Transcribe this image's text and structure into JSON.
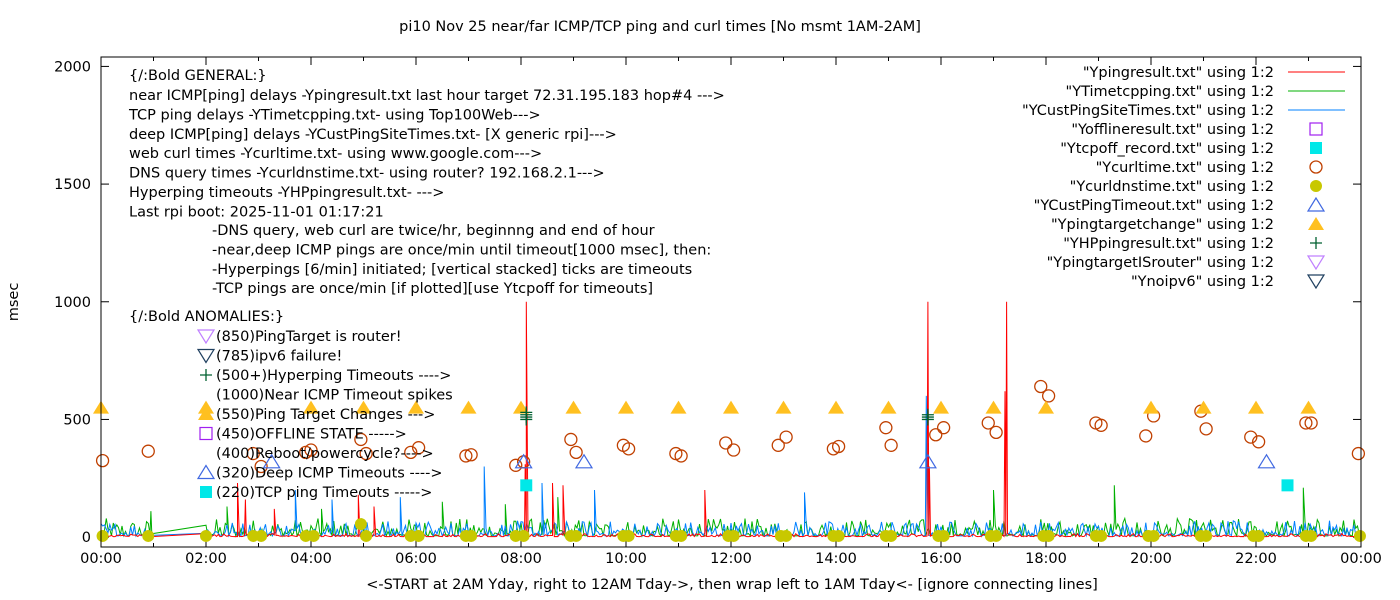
{
  "chart_data": {
    "type": "line",
    "title": "pi10 Nov 25  near/far ICMP/TCP ping and curl times [No msmt 1AM-2AM]",
    "xlabel": "<-START at 2AM Yday, right to 12AM Tday->, then wrap left to 1AM Tday<- [ignore connecting lines]",
    "ylabel": "msec",
    "xlim": [
      0,
      24
    ],
    "ylim": [
      0,
      2000
    ],
    "x_tick_labels": [
      "00:00",
      "02:00",
      "04:00",
      "06:00",
      "08:00",
      "10:00",
      "12:00",
      "14:00",
      "16:00",
      "18:00",
      "20:00",
      "22:00",
      "00:00"
    ],
    "y_ticks": [
      0,
      500,
      1000,
      1500,
      2000
    ],
    "legend_position": "top-right",
    "legend": [
      {
        "label": "\"Ypingresult.txt\" using 1:2",
        "style": "line",
        "color": "#ff0000"
      },
      {
        "label": "\"YTimetcpping.txt\" using 1:2",
        "style": "line",
        "color": "#00b000"
      },
      {
        "label": "\"YCustPingSiteTimes.txt\" using 1:2",
        "style": "line",
        "color": "#0080ff"
      },
      {
        "label": "\"Yofflineresult.txt\" using 1:2",
        "style": "open-square",
        "color": "#a020f0"
      },
      {
        "label": "\"Ytcpoff_record.txt\" using 1:2",
        "style": "filled-square",
        "color": "#00e8e8"
      },
      {
        "label": "\"Ycurltime.txt\" using 1:2",
        "style": "open-circle",
        "color": "#c04000"
      },
      {
        "label": "\"Ycurldnstime.txt\" using 1:2",
        "style": "filled-circle",
        "color": "#c8c800"
      },
      {
        "label": "\"YCustPingTimeout.txt\" using 1:2",
        "style": "open-triangle",
        "color": "#4169e1"
      },
      {
        "label": "\"Ypingtargetchange\" using 1:2",
        "style": "filled-triangle",
        "color": "#ffc020"
      },
      {
        "label": "\"YHPpingresult.txt\" using 1:2",
        "style": "plus",
        "color": "#006030"
      },
      {
        "label": "\"YpingtargetISrouter\" using 1:2",
        "style": "open-down-triangle",
        "color": "#c080ff"
      },
      {
        "label": "\"Ynoipv6\" using 1:2",
        "style": "open-down-triangle",
        "color": "#204060"
      }
    ],
    "series": {
      "ping_near": {
        "baseline_range": [
          2,
          15
        ],
        "spikes": [
          [
            2.6,
            230
          ],
          [
            2.75,
            160
          ],
          [
            3.3,
            120
          ],
          [
            4.9,
            180
          ],
          [
            5.2,
            130
          ],
          [
            8.1,
            1000
          ],
          [
            8.08,
            310
          ],
          [
            8.6,
            230
          ],
          [
            8.8,
            220
          ],
          [
            11.5,
            80
          ],
          [
            11.5,
            200
          ],
          [
            15.75,
            1000
          ],
          [
            15.78,
            300
          ],
          [
            17.25,
            1000
          ],
          [
            17.22,
            620
          ]
        ]
      },
      "tcp_ping": {
        "baseline_range": [
          5,
          80
        ],
        "spikes": [
          [
            0.95,
            110
          ],
          [
            2.4,
            130
          ],
          [
            4.2,
            120
          ],
          [
            6.5,
            150
          ],
          [
            7.7,
            140
          ],
          [
            8.7,
            170
          ],
          [
            13.4,
            60
          ],
          [
            17.0,
            200
          ],
          [
            19.3,
            220
          ],
          [
            22.9,
            210
          ]
        ]
      },
      "deep_ping": {
        "baseline_range": [
          5,
          70
        ],
        "spikes": [
          [
            3.7,
            200
          ],
          [
            4.4,
            160
          ],
          [
            5.7,
            170
          ],
          [
            7.3,
            300
          ],
          [
            8.4,
            230
          ],
          [
            9.4,
            200
          ],
          [
            13.4,
            190
          ],
          [
            15.72,
            600
          ],
          [
            15.76,
            400
          ]
        ]
      },
      "curl_times": [
        [
          0.03,
          325
        ],
        [
          0.9,
          365
        ],
        [
          2.9,
          355
        ],
        [
          3.05,
          300
        ],
        [
          3.9,
          360
        ],
        [
          4.0,
          370
        ],
        [
          4.95,
          415
        ],
        [
          5.05,
          355
        ],
        [
          5.9,
          360
        ],
        [
          6.05,
          380
        ],
        [
          6.95,
          345
        ],
        [
          7.05,
          350
        ],
        [
          7.9,
          305
        ],
        [
          8.05,
          320
        ],
        [
          8.95,
          415
        ],
        [
          9.05,
          360
        ],
        [
          9.95,
          390
        ],
        [
          10.05,
          375
        ],
        [
          10.95,
          355
        ],
        [
          11.05,
          345
        ],
        [
          11.9,
          400
        ],
        [
          12.05,
          370
        ],
        [
          12.9,
          390
        ],
        [
          13.05,
          425
        ],
        [
          13.95,
          375
        ],
        [
          14.05,
          385
        ],
        [
          14.95,
          465
        ],
        [
          15.05,
          390
        ],
        [
          15.9,
          435
        ],
        [
          16.05,
          465
        ],
        [
          16.9,
          485
        ],
        [
          17.05,
          445
        ],
        [
          17.9,
          640
        ],
        [
          18.05,
          600
        ],
        [
          18.95,
          485
        ],
        [
          19.05,
          475
        ],
        [
          19.9,
          430
        ],
        [
          20.05,
          515
        ],
        [
          20.95,
          535
        ],
        [
          21.05,
          460
        ],
        [
          21.9,
          425
        ],
        [
          22.05,
          405
        ],
        [
          22.95,
          485
        ],
        [
          23.05,
          485
        ],
        [
          23.95,
          355
        ]
      ],
      "dns_times": [
        [
          0.03,
          5
        ],
        [
          0.9,
          5
        ],
        [
          2.0,
          5
        ],
        [
          2.9,
          5
        ],
        [
          3.05,
          5
        ],
        [
          3.9,
          5
        ],
        [
          4.05,
          5
        ],
        [
          4.95,
          55
        ],
        [
          5.05,
          5
        ],
        [
          5.9,
          5
        ],
        [
          6.05,
          5
        ],
        [
          6.95,
          5
        ],
        [
          7.05,
          5
        ],
        [
          7.9,
          5
        ],
        [
          8.05,
          5
        ],
        [
          8.95,
          5
        ],
        [
          9.05,
          5
        ],
        [
          9.95,
          5
        ],
        [
          10.05,
          5
        ],
        [
          10.95,
          5
        ],
        [
          11.05,
          5
        ],
        [
          11.95,
          5
        ],
        [
          12.05,
          5
        ],
        [
          12.95,
          5
        ],
        [
          13.05,
          5
        ],
        [
          13.95,
          5
        ],
        [
          14.05,
          5
        ],
        [
          14.95,
          5
        ],
        [
          15.05,
          5
        ],
        [
          15.95,
          5
        ],
        [
          16.05,
          5
        ],
        [
          16.95,
          5
        ],
        [
          17.05,
          5
        ],
        [
          17.95,
          5
        ],
        [
          18.05,
          5
        ],
        [
          18.95,
          5
        ],
        [
          19.05,
          5
        ],
        [
          19.95,
          5
        ],
        [
          20.05,
          5
        ],
        [
          20.95,
          5
        ],
        [
          21.05,
          5
        ],
        [
          21.95,
          5
        ],
        [
          22.05,
          5
        ],
        [
          22.95,
          5
        ],
        [
          23.05,
          5
        ],
        [
          23.98,
          5
        ]
      ],
      "cust_ping_timeouts": [
        [
          3.25,
          320
        ],
        [
          8.05,
          320
        ],
        [
          9.2,
          320
        ],
        [
          15.75,
          320
        ],
        [
          22.2,
          320
        ]
      ],
      "tcp_off": [
        [
          8.1,
          220
        ],
        [
          22.6,
          220
        ]
      ],
      "ping_target_change": [
        [
          0,
          550
        ],
        [
          2,
          550
        ],
        [
          4,
          550
        ],
        [
          5,
          550
        ],
        [
          6,
          550
        ],
        [
          7,
          550
        ],
        [
          8,
          550
        ],
        [
          9,
          550
        ],
        [
          10,
          550
        ],
        [
          11,
          550
        ],
        [
          12,
          550
        ],
        [
          13,
          550
        ],
        [
          14,
          550
        ],
        [
          15,
          550
        ],
        [
          16,
          550
        ],
        [
          17,
          550
        ],
        [
          18,
          550
        ],
        [
          20,
          550
        ],
        [
          21,
          550
        ],
        [
          22,
          550
        ],
        [
          23,
          550
        ]
      ],
      "hyperping_timeouts": [
        [
          8.1,
          500
        ],
        [
          8.1,
          510
        ],
        [
          8.1,
          520
        ],
        [
          8.1,
          530
        ],
        [
          15.75,
          500
        ],
        [
          15.75,
          510
        ],
        [
          15.75,
          520
        ]
      ]
    },
    "general_notes": {
      "heading": "{/:Bold GENERAL:}",
      "lines": [
        "near ICMP[ping] delays -Ypingresult.txt last hour target 72.31.195.183 hop#4 --->",
        "TCP ping delays -YTimetcpping.txt- using Top100Web--->",
        "deep ICMP[ping] delays -YCustPingSiteTimes.txt- [X generic rpi]--->",
        "web curl times -Ycurltime.txt- using www.google.com--->",
        "DNS query times -Ycurldnstime.txt- using router? 192.168.2.1--->",
        "Hyperping timeouts -YHPpingresult.txt- --->",
        "Last rpi boot: 2025-11-01 01:17:21"
      ],
      "indented": [
        "-DNS query, web curl are twice/hr, beginnng and end of hour",
        "-near,deep ICMP pings are once/min until timeout[1000 msec], then:",
        "  -Hyperpings [6/min] initiated; [vertical stacked] ticks are timeouts",
        "-TCP pings are once/min [if plotted][use Ytcpoff for timeouts]"
      ]
    },
    "anomalies": {
      "heading": "{/:Bold ANOMALIES:}",
      "items": [
        {
          "label": "(850)PingTarget is router!",
          "glyph": "open-down-triangle",
          "color": "#c080ff"
        },
        {
          "label": "(785)ipv6 failure!",
          "glyph": "open-down-triangle",
          "color": "#204060"
        },
        {
          "label": "(500+)Hyperping Timeouts ---->",
          "glyph": "plus",
          "color": "#006030"
        },
        {
          "label": "(1000)Near ICMP Timeout spikes",
          "glyph": "none",
          "color": ""
        },
        {
          "label": "(550)Ping Target Changes --->",
          "glyph": "filled-triangle",
          "color": "#ffc020"
        },
        {
          "label": "(450)OFFLINE STATE ----->",
          "glyph": "open-square",
          "color": "#a020f0"
        },
        {
          "label": "(400)Reboot/powercycle?---->",
          "glyph": "none",
          "color": ""
        },
        {
          "label": "(320)Deep ICMP Timeouts ---->",
          "glyph": "open-triangle",
          "color": "#4169e1"
        },
        {
          "label": "(220)TCP ping Timeouts ----->",
          "glyph": "filled-square",
          "color": "#00e8e8"
        }
      ]
    }
  }
}
